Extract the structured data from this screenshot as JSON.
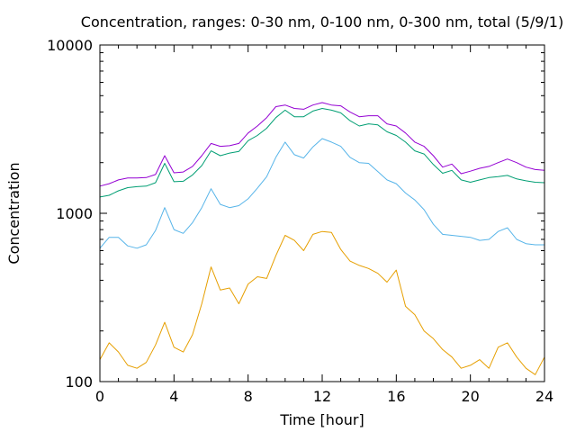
{
  "chart_data": {
    "type": "line",
    "title": "Concentration, ranges: 0-30 nm, 0-100 nm, 0-300 nm, total (5/9/1)",
    "xlabel": "Time [hour]",
    "ylabel": "Concentration",
    "xlim": [
      0,
      24
    ],
    "ylim": [
      100,
      10000
    ],
    "yscale": "log",
    "grid": false,
    "legend": "none",
    "x_ticks": [
      0,
      4,
      8,
      12,
      16,
      20,
      24
    ],
    "x_tick_labels": [
      "0",
      "4",
      "8",
      "12",
      "16",
      "20",
      "24"
    ],
    "y_ticks": [
      100,
      1000,
      10000
    ],
    "y_tick_labels": [
      "100",
      "1000",
      "10000"
    ],
    "x": [
      0,
      0.5,
      1,
      1.5,
      2,
      2.5,
      3,
      3.5,
      4,
      4.5,
      5,
      5.5,
      6,
      6.5,
      7,
      7.5,
      8,
      8.5,
      9,
      9.5,
      10,
      10.5,
      11,
      11.5,
      12,
      12.5,
      13,
      13.5,
      14,
      14.5,
      15,
      15.5,
      16,
      16.5,
      17,
      17.5,
      18,
      18.5,
      19,
      19.5,
      20,
      20.5,
      21,
      21.5,
      22,
      22.5,
      23,
      23.5,
      24
    ],
    "series": [
      {
        "color": "#e69f00",
        "values": [
          135,
          170,
          150,
          125,
          120,
          130,
          165,
          225,
          160,
          150,
          190,
          290,
          480,
          350,
          360,
          290,
          380,
          420,
          410,
          560,
          740,
          690,
          600,
          750,
          780,
          770,
          610,
          520,
          490,
          470,
          440,
          390,
          460,
          280,
          250,
          200,
          180,
          155,
          140,
          120,
          125,
          135,
          120,
          160,
          170,
          140,
          120,
          110,
          140
        ]
      },
      {
        "color": "#56b4e9",
        "values": [
          620,
          720,
          720,
          640,
          620,
          650,
          790,
          1080,
          800,
          760,
          880,
          1080,
          1400,
          1130,
          1080,
          1110,
          1220,
          1410,
          1650,
          2150,
          2650,
          2230,
          2130,
          2480,
          2780,
          2650,
          2500,
          2150,
          2000,
          1980,
          1770,
          1580,
          1500,
          1320,
          1200,
          1050,
          860,
          750,
          740,
          730,
          720,
          690,
          700,
          780,
          820,
          700,
          660,
          650,
          650
        ]
      },
      {
        "color": "#009e73",
        "values": [
          1250,
          1280,
          1360,
          1420,
          1440,
          1450,
          1520,
          1980,
          1540,
          1550,
          1690,
          1920,
          2350,
          2200,
          2280,
          2330,
          2700,
          2900,
          3200,
          3700,
          4100,
          3750,
          3750,
          4050,
          4200,
          4100,
          3950,
          3550,
          3300,
          3400,
          3350,
          3050,
          2900,
          2650,
          2350,
          2250,
          1950,
          1730,
          1800,
          1580,
          1530,
          1580,
          1630,
          1650,
          1680,
          1600,
          1560,
          1530,
          1520
        ]
      },
      {
        "color": "#9400d3",
        "values": [
          1450,
          1500,
          1580,
          1620,
          1620,
          1630,
          1700,
          2200,
          1740,
          1760,
          1900,
          2200,
          2600,
          2500,
          2520,
          2600,
          3000,
          3300,
          3700,
          4300,
          4400,
          4200,
          4150,
          4400,
          4550,
          4400,
          4350,
          4000,
          3750,
          3800,
          3800,
          3400,
          3300,
          3000,
          2650,
          2500,
          2200,
          1880,
          1960,
          1720,
          1780,
          1850,
          1900,
          2000,
          2100,
          2000,
          1880,
          1820,
          1800
        ]
      }
    ]
  }
}
